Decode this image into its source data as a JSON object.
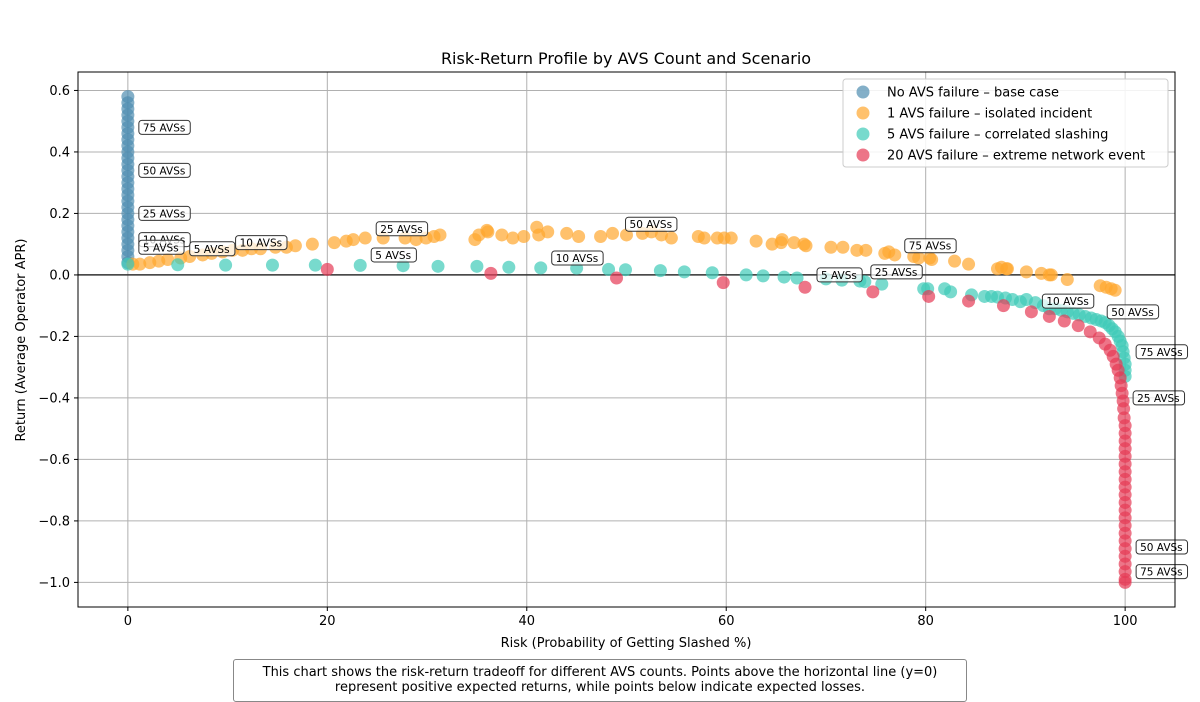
{
  "chart_data": {
    "type": "scatter",
    "title": "Risk-Return Profile by AVS Count and Scenario",
    "xlabel": "Risk (Probability of Getting Slashed %)",
    "ylabel": "Return (Average Operator APR)",
    "xlim": [
      -5,
      105
    ],
    "ylim": [
      -1.08,
      0.66
    ],
    "xticks": [
      0,
      20,
      40,
      60,
      80,
      100
    ],
    "yticks": [
      -1.0,
      -0.8,
      -0.6,
      -0.4,
      -0.2,
      0.0,
      0.2,
      0.4,
      0.6
    ],
    "grid": true,
    "reference_line_y": 0,
    "legend_position": "top-right",
    "series": [
      {
        "name": "No AVS failure – base case",
        "color": "#4f8db0",
        "points": [
          [
            0,
            0.04
          ],
          [
            0,
            0.06
          ],
          [
            0,
            0.08
          ],
          [
            0,
            0.1
          ],
          [
            0,
            0.12
          ],
          [
            0,
            0.14
          ],
          [
            0,
            0.16
          ],
          [
            0,
            0.18
          ],
          [
            0,
            0.2
          ],
          [
            0,
            0.22
          ],
          [
            0,
            0.24
          ],
          [
            0,
            0.26
          ],
          [
            0,
            0.28
          ],
          [
            0,
            0.3
          ],
          [
            0,
            0.32
          ],
          [
            0,
            0.34
          ],
          [
            0,
            0.36
          ],
          [
            0,
            0.38
          ],
          [
            0,
            0.4
          ],
          [
            0,
            0.42
          ],
          [
            0,
            0.44
          ],
          [
            0,
            0.46
          ],
          [
            0,
            0.48
          ],
          [
            0,
            0.5
          ],
          [
            0,
            0.52
          ],
          [
            0,
            0.54
          ],
          [
            0,
            0.56
          ],
          [
            0,
            0.58
          ]
        ]
      },
      {
        "name": "1 AVS failure – isolated incident",
        "color": "#ffa62e",
        "points": [
          [
            0.5,
            0.035
          ],
          [
            1.2,
            0.035
          ],
          [
            2.2,
            0.04
          ],
          [
            3.1,
            0.045
          ],
          [
            4.0,
            0.05
          ],
          [
            5.3,
            0.055
          ],
          [
            6.2,
            0.06
          ],
          [
            7.5,
            0.065
          ],
          [
            8.4,
            0.07
          ],
          [
            9.5,
            0.075
          ],
          [
            10.5,
            0.08
          ],
          [
            11.5,
            0.08
          ],
          [
            12.4,
            0.085
          ],
          [
            13.3,
            0.085
          ],
          [
            14.8,
            0.09
          ],
          [
            15.9,
            0.09
          ],
          [
            16.8,
            0.095
          ],
          [
            18.5,
            0.1
          ],
          [
            20.7,
            0.105
          ],
          [
            21.9,
            0.11
          ],
          [
            22.6,
            0.115
          ],
          [
            23.8,
            0.12
          ],
          [
            25.6,
            0.12
          ],
          [
            27.8,
            0.12
          ],
          [
            28.9,
            0.115
          ],
          [
            29.9,
            0.12
          ],
          [
            30.7,
            0.125
          ],
          [
            31.3,
            0.13
          ],
          [
            34.8,
            0.115
          ],
          [
            35.2,
            0.13
          ],
          [
            36.0,
            0.145
          ],
          [
            36.1,
            0.14
          ],
          [
            37.5,
            0.13
          ],
          [
            38.6,
            0.12
          ],
          [
            39.7,
            0.125
          ],
          [
            41.0,
            0.155
          ],
          [
            41.2,
            0.13
          ],
          [
            42.1,
            0.14
          ],
          [
            44.0,
            0.135
          ],
          [
            45.2,
            0.125
          ],
          [
            47.4,
            0.125
          ],
          [
            48.6,
            0.135
          ],
          [
            50.0,
            0.13
          ],
          [
            51.6,
            0.135
          ],
          [
            52.5,
            0.14
          ],
          [
            53.5,
            0.13
          ],
          [
            54.5,
            0.12
          ],
          [
            57.2,
            0.125
          ],
          [
            57.8,
            0.12
          ],
          [
            59.1,
            0.12
          ],
          [
            59.8,
            0.12
          ],
          [
            60.5,
            0.12
          ],
          [
            63.0,
            0.11
          ],
          [
            64.6,
            0.1
          ],
          [
            65.5,
            0.105
          ],
          [
            65.6,
            0.115
          ],
          [
            66.8,
            0.105
          ],
          [
            67.8,
            0.1
          ],
          [
            68.0,
            0.095
          ],
          [
            70.5,
            0.09
          ],
          [
            71.7,
            0.09
          ],
          [
            73.1,
            0.08
          ],
          [
            74.0,
            0.08
          ],
          [
            75.9,
            0.07
          ],
          [
            76.3,
            0.075
          ],
          [
            76.9,
            0.065
          ],
          [
            78.8,
            0.06
          ],
          [
            79.3,
            0.055
          ],
          [
            80.4,
            0.055
          ],
          [
            80.6,
            0.05
          ],
          [
            82.9,
            0.045
          ],
          [
            84.3,
            0.035
          ],
          [
            87.2,
            0.02
          ],
          [
            87.6,
            0.025
          ],
          [
            88.1,
            0.02
          ],
          [
            88.2,
            0.02
          ],
          [
            90.1,
            0.01
          ],
          [
            91.6,
            0.005
          ],
          [
            92.4,
            0.0
          ],
          [
            92.6,
            0.0
          ],
          [
            94.2,
            -0.015
          ],
          [
            97.5,
            -0.035
          ],
          [
            98.1,
            -0.04
          ],
          [
            98.6,
            -0.045
          ],
          [
            99.0,
            -0.05
          ]
        ]
      },
      {
        "name": "5 AVS failure – correlated slashing",
        "color": "#3fcbb8",
        "points": [
          [
            0,
            0.035
          ],
          [
            5,
            0.033
          ],
          [
            9.8,
            0.032
          ],
          [
            14.5,
            0.032
          ],
          [
            18.8,
            0.032
          ],
          [
            23.3,
            0.031
          ],
          [
            27.6,
            0.03
          ],
          [
            31.1,
            0.028
          ],
          [
            35.0,
            0.028
          ],
          [
            38.2,
            0.025
          ],
          [
            41.4,
            0.023
          ],
          [
            45.0,
            0.022
          ],
          [
            48.2,
            0.018
          ],
          [
            49.9,
            0.017
          ],
          [
            53.4,
            0.014
          ],
          [
            55.8,
            0.01
          ],
          [
            58.6,
            0.007
          ],
          [
            62.0,
            0.0
          ],
          [
            63.7,
            -0.003
          ],
          [
            65.8,
            -0.007
          ],
          [
            67.1,
            -0.01
          ],
          [
            70.0,
            -0.013
          ],
          [
            71.6,
            -0.017
          ],
          [
            73.4,
            -0.02
          ],
          [
            73.9,
            -0.022
          ],
          [
            75.6,
            -0.03
          ],
          [
            79.8,
            -0.045
          ],
          [
            80.2,
            -0.045
          ],
          [
            81.9,
            -0.045
          ],
          [
            82.5,
            -0.055
          ],
          [
            84.6,
            -0.065
          ],
          [
            85.9,
            -0.07
          ],
          [
            86.6,
            -0.07
          ],
          [
            87.2,
            -0.072
          ],
          [
            88.0,
            -0.075
          ],
          [
            88.7,
            -0.08
          ],
          [
            89.5,
            -0.087
          ],
          [
            90.1,
            -0.08
          ],
          [
            91.0,
            -0.09
          ],
          [
            91.8,
            -0.1
          ],
          [
            92.4,
            -0.11
          ],
          [
            93.0,
            -0.11
          ],
          [
            93.6,
            -0.115
          ],
          [
            94.2,
            -0.12
          ],
          [
            94.8,
            -0.125
          ],
          [
            95.4,
            -0.13
          ],
          [
            96.0,
            -0.135
          ],
          [
            96.6,
            -0.14
          ],
          [
            97.1,
            -0.145
          ],
          [
            97.6,
            -0.15
          ],
          [
            98.0,
            -0.155
          ],
          [
            98.4,
            -0.165
          ],
          [
            98.7,
            -0.175
          ],
          [
            99.0,
            -0.185
          ],
          [
            99.3,
            -0.2
          ],
          [
            99.5,
            -0.215
          ],
          [
            99.7,
            -0.23
          ],
          [
            99.8,
            -0.25
          ],
          [
            99.9,
            -0.27
          ],
          [
            100,
            -0.29
          ],
          [
            100,
            -0.31
          ],
          [
            100,
            -0.33
          ]
        ]
      },
      {
        "name": "20 AVS failure – extreme network event",
        "color": "#e63b55",
        "points": [
          [
            20.0,
            0.018
          ],
          [
            36.4,
            0.005
          ],
          [
            49.0,
            -0.01
          ],
          [
            59.7,
            -0.025
          ],
          [
            67.9,
            -0.04
          ],
          [
            74.7,
            -0.055
          ],
          [
            80.3,
            -0.07
          ],
          [
            84.3,
            -0.085
          ],
          [
            87.8,
            -0.1
          ],
          [
            90.6,
            -0.12
          ],
          [
            92.4,
            -0.135
          ],
          [
            93.9,
            -0.15
          ],
          [
            95.3,
            -0.165
          ],
          [
            96.5,
            -0.185
          ],
          [
            97.4,
            -0.205
          ],
          [
            98.0,
            -0.225
          ],
          [
            98.5,
            -0.245
          ],
          [
            98.8,
            -0.265
          ],
          [
            99.1,
            -0.29
          ],
          [
            99.3,
            -0.31
          ],
          [
            99.5,
            -0.335
          ],
          [
            99.6,
            -0.36
          ],
          [
            99.7,
            -0.385
          ],
          [
            99.8,
            -0.41
          ],
          [
            99.85,
            -0.435
          ],
          [
            99.9,
            -0.465
          ],
          [
            100,
            -0.49
          ],
          [
            100,
            -0.515
          ],
          [
            100,
            -0.54
          ],
          [
            100,
            -0.565
          ],
          [
            100,
            -0.59
          ],
          [
            100,
            -0.615
          ],
          [
            100,
            -0.64
          ],
          [
            100,
            -0.665
          ],
          [
            100,
            -0.69
          ],
          [
            100,
            -0.715
          ],
          [
            100,
            -0.74
          ],
          [
            100,
            -0.765
          ],
          [
            100,
            -0.79
          ],
          [
            100,
            -0.815
          ],
          [
            100,
            -0.84
          ],
          [
            100,
            -0.865
          ],
          [
            100,
            -0.89
          ],
          [
            100,
            -0.915
          ],
          [
            100,
            -0.94
          ],
          [
            100,
            -0.965
          ],
          [
            100,
            -0.99
          ],
          [
            100,
            -1.0
          ]
        ]
      }
    ],
    "annotations": [
      {
        "text": "75 AVSs",
        "x": 0.5,
        "y": 0.48
      },
      {
        "text": "50 AVSs",
        "x": 0.5,
        "y": 0.34
      },
      {
        "text": "25 AVSs",
        "x": 0.5,
        "y": 0.2
      },
      {
        "text": "10 AVSs",
        "x": 0.5,
        "y": 0.115
      },
      {
        "text": "5 AVSs",
        "x": 0.5,
        "y": 0.09
      },
      {
        "text": "5 AVSs",
        "x": 5.6,
        "y": 0.085
      },
      {
        "text": "10 AVSs",
        "x": 10.2,
        "y": 0.105
      },
      {
        "text": "25 AVSs",
        "x": 24.3,
        "y": 0.15
      },
      {
        "text": "5 AVSs",
        "x": 23.8,
        "y": 0.065
      },
      {
        "text": "50 AVSs",
        "x": 49.3,
        "y": 0.165
      },
      {
        "text": "10 AVSs",
        "x": 41.9,
        "y": 0.055
      },
      {
        "text": "75 AVSs",
        "x": 77.3,
        "y": 0.095
      },
      {
        "text": "5 AVSs",
        "x": 68.5,
        "y": 0.0
      },
      {
        "text": "25 AVSs",
        "x": 73.9,
        "y": 0.01
      },
      {
        "text": "10 AVSs",
        "x": 91.1,
        "y": -0.085
      },
      {
        "text": "50 AVSs",
        "x": 97.6,
        "y": -0.12
      },
      {
        "text": "75 AVSs",
        "x": 100.5,
        "y": -0.25
      },
      {
        "text": "25 AVSs",
        "x": 100.2,
        "y": -0.4
      },
      {
        "text": "50 AVSs",
        "x": 100.5,
        "y": -0.885
      },
      {
        "text": "75 AVSs",
        "x": 100.5,
        "y": -0.965
      }
    ]
  },
  "caption": {
    "line1": "This chart shows the risk-return tradeoff for different AVS counts. Points above the horizontal line (y=0)",
    "line2": "represent positive expected returns, while points below indicate expected losses."
  }
}
